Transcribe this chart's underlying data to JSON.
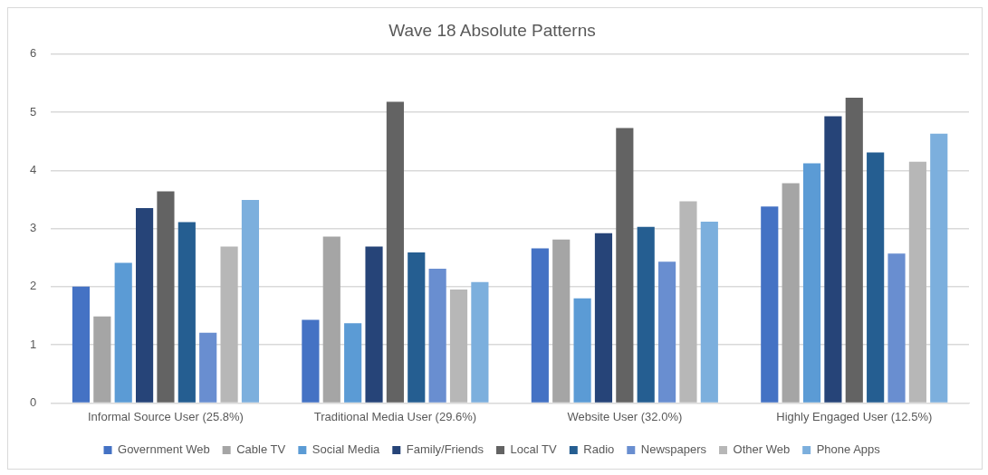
{
  "chart_data": {
    "type": "bar",
    "title": "Wave 18 Absolute Patterns",
    "categories": [
      "Informal Source User (25.8%)",
      "Traditional Media User (29.6%)",
      "Website User (32.0%)",
      "Highly Engaged User (12.5%)"
    ],
    "series": [
      {
        "name": "Government Web",
        "color": "#4472c4",
        "values": [
          2.0,
          1.43,
          2.66,
          3.38
        ]
      },
      {
        "name": "Cable TV",
        "color": "#a5a5a5",
        "values": [
          1.49,
          2.86,
          2.81,
          3.78
        ]
      },
      {
        "name": "Social Media",
        "color": "#5b9bd5",
        "values": [
          2.41,
          1.37,
          1.8,
          4.12
        ]
      },
      {
        "name": "Family/Friends",
        "color": "#264478",
        "values": [
          3.35,
          2.69,
          2.92,
          4.93
        ]
      },
      {
        "name": "Local TV",
        "color": "#636363",
        "values": [
          3.64,
          5.18,
          4.73,
          5.25
        ]
      },
      {
        "name": "Radio",
        "color": "#255e91",
        "values": [
          3.11,
          2.59,
          3.03,
          4.31
        ]
      },
      {
        "name": "Newspapers",
        "color": "#698ed0",
        "values": [
          1.21,
          2.31,
          2.43,
          2.57
        ]
      },
      {
        "name": "Other Web",
        "color": "#b7b7b7",
        "values": [
          2.69,
          1.95,
          3.47,
          4.15
        ]
      },
      {
        "name": "Phone Apps",
        "color": "#7cafdd",
        "values": [
          3.49,
          2.08,
          3.12,
          4.63
        ]
      }
    ],
    "ylim": [
      0,
      6
    ],
    "yticks": [
      0,
      1,
      2,
      3,
      4,
      5,
      6
    ],
    "grid": "y",
    "legend": "bottom"
  }
}
